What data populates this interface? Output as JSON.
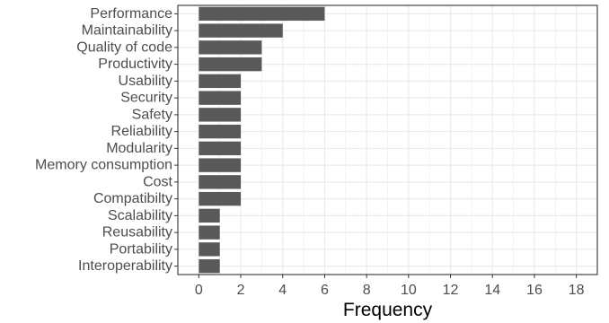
{
  "chart_data": {
    "type": "bar",
    "orientation": "horizontal",
    "categories": [
      "Performance",
      "Maintainability",
      "Quality of code",
      "Productivity",
      "Usability",
      "Security",
      "Safety",
      "Reliability",
      "Modularity",
      "Memory consumption",
      "Cost",
      "Compatibilty",
      "Scalability",
      "Reusability",
      "Portability",
      "Interoperability"
    ],
    "values": [
      6,
      4,
      3,
      3,
      2,
      2,
      2,
      2,
      2,
      2,
      2,
      2,
      1,
      1,
      1,
      1
    ],
    "xlabel": "Frequency",
    "ylabel": "",
    "xlim": [
      -1,
      19
    ],
    "xticks": [
      0,
      2,
      4,
      6,
      8,
      10,
      12,
      14,
      16,
      18
    ],
    "grid": true,
    "legend": "none",
    "colors": {
      "bar": "#595959",
      "grid": "#ebebeb",
      "panel_border": "#333333",
      "tick_text": "#4d4d4d",
      "title_text": "#000000"
    }
  }
}
